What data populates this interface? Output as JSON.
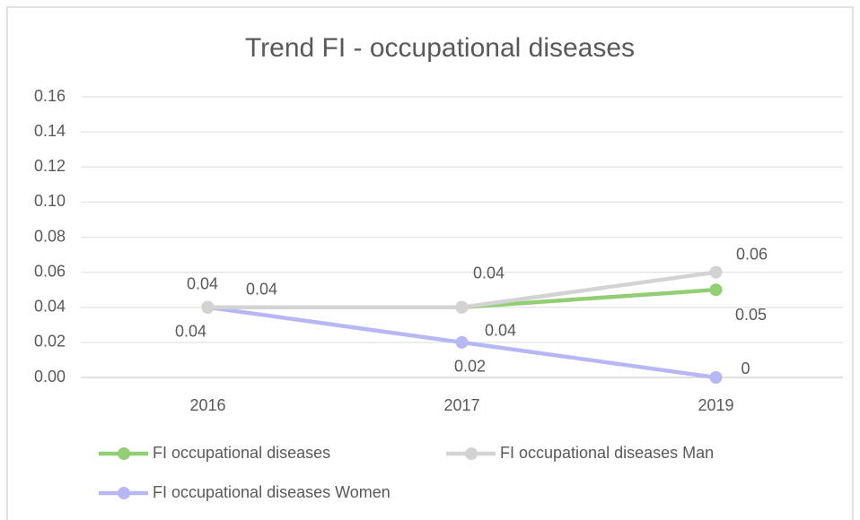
{
  "chart_data": {
    "type": "line",
    "title": "Trend FI - occupational diseases",
    "categories": [
      "2016",
      "2017",
      "2019"
    ],
    "series": [
      {
        "name": "FI occupational diseases",
        "color": "#92cf72",
        "values": [
          0.04,
          0.04,
          0.05
        ]
      },
      {
        "name": "FI occupational diseases Man",
        "color": "#d3d3d3",
        "values": [
          0.04,
          0.04,
          0.06
        ]
      },
      {
        "name": "FI occupational diseases Women",
        "color": "#b7b7f5",
        "values": [
          0.04,
          0.02,
          0
        ]
      }
    ],
    "ylim": [
      0,
      0.16
    ],
    "yticks": [
      {
        "value": 0,
        "label": "0.00"
      },
      {
        "value": 0.02,
        "label": "0.02"
      },
      {
        "value": 0.04,
        "label": "0.04"
      },
      {
        "value": 0.06,
        "label": "0.06"
      },
      {
        "value": 0.08,
        "label": "0.08"
      },
      {
        "value": 0.1,
        "label": "0.10"
      },
      {
        "value": 0.12,
        "label": "0.12"
      },
      {
        "value": 0.14,
        "label": "0.14"
      },
      {
        "value": 0.16,
        "label": "0.16"
      }
    ],
    "grid": true,
    "legend": "bottom"
  }
}
